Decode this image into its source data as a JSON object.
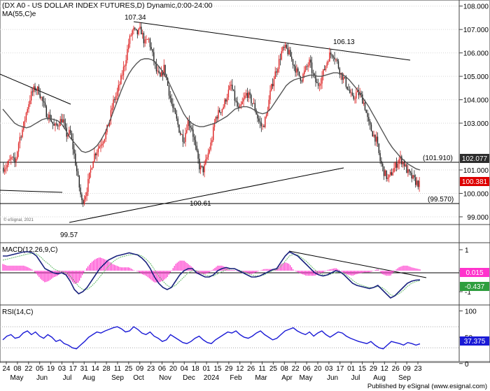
{
  "header": {
    "title": "(DX A0 - US DOLLAR INDEX FUTURES,D) Dynamic,0:00-24:00",
    "ma_label": "MA(55,C)e",
    "copyright": "© eSignal, 2021"
  },
  "footer": {
    "published": "Published by eSignal (www.esignal.com)"
  },
  "colors": {
    "bull": "#dd2222",
    "bear": "#222222",
    "ma": "#555555",
    "macd_line": "#1a237e",
    "signal_line": "#66bb6a",
    "histogram": "#ff33cc",
    "rsi_line": "#1a1ad6",
    "last_price_bg": "#dd0000",
    "level_bg": "#2d2d2d",
    "macd_value_bg": "#ff33cc",
    "signal_value_bg": "#2e9e3e",
    "rsi_value_bg": "#1a1ad6"
  },
  "chart_data": [
    {
      "type": "candlestick",
      "panel": "price",
      "series_names": [
        "DX A0",
        "MA(55,C)e"
      ],
      "ylim": [
        98.7,
        108.2
      ],
      "y_ticks": [
        "108.000",
        "107.000",
        "106.000",
        "105.000",
        "104.000",
        "103.000",
        "101.000",
        "100.000",
        "99.000"
      ],
      "last_price_label": "100.381",
      "level_label": "102.077",
      "annotations": [
        "107.34",
        "106.13",
        "100.61",
        "99.57",
        "(101.910)",
        "(99.570)"
      ],
      "close_path": [
        101.1,
        101.2,
        101.5,
        101.3,
        102.3,
        102.8,
        103.6,
        104.2,
        104.5,
        104.4,
        103.9,
        103.4,
        103.2,
        102.8,
        103.0,
        103.2,
        102.5,
        102.6,
        101.7,
        100.6,
        99.6,
        100.0,
        100.8,
        101.6,
        101.9,
        102.2,
        102.5,
        103.1,
        103.9,
        104.3,
        104.9,
        105.6,
        106.5,
        107.0,
        106.8,
        107.0,
        106.4,
        106.6,
        105.9,
        105.2,
        104.9,
        105.4,
        104.5,
        103.7,
        103.2,
        102.6,
        102.3,
        103.1,
        102.8,
        101.9,
        101.1,
        101.0,
        101.6,
        102.2,
        103.2,
        103.5,
        103.7,
        104.2,
        104.6,
        104.0,
        103.5,
        103.9,
        104.3,
        104.0,
        103.7,
        103.1,
        102.8,
        103.3,
        104.3,
        105.0,
        105.5,
        106.1,
        106.2,
        105.9,
        105.5,
        105.1,
        104.9,
        105.3,
        105.6,
        105.0,
        104.6,
        104.9,
        105.4,
        105.9,
        106.0,
        105.6,
        105.1,
        104.8,
        104.4,
        104.0,
        104.3,
        104.2,
        103.8,
        103.0,
        102.6,
        102.3,
        101.4,
        100.9,
        100.6,
        100.9,
        101.2,
        101.5,
        101.3,
        100.9,
        100.7,
        100.5,
        100.38
      ],
      "ma_path": [
        103.6,
        103.4,
        103.2,
        103.0,
        102.9,
        102.85,
        102.8,
        102.85,
        102.95,
        103.05,
        103.15,
        103.2,
        103.2,
        103.15,
        103.1,
        102.95,
        102.7,
        102.4,
        102.2,
        102.0,
        101.8,
        101.75,
        101.8,
        101.9,
        102.05,
        102.3,
        102.6,
        103.0,
        103.45,
        103.9,
        104.35,
        104.75,
        105.1,
        105.35,
        105.55,
        105.7,
        105.75,
        105.75,
        105.7,
        105.55,
        105.35,
        105.1,
        104.8,
        104.45,
        104.1,
        103.75,
        103.4,
        103.15,
        103.0,
        102.9,
        102.85,
        102.85,
        102.9,
        102.95,
        103.0,
        103.1,
        103.2,
        103.3,
        103.45,
        103.6,
        103.65,
        103.7,
        103.7,
        103.65,
        103.55,
        103.45,
        103.4,
        103.45,
        103.6,
        103.85,
        104.1,
        104.35,
        104.6,
        104.75,
        104.85,
        104.9,
        104.95,
        105.0,
        105.05,
        105.05,
        105.0,
        105.0,
        105.05,
        105.1,
        105.15,
        105.15,
        105.1,
        105.0,
        104.85,
        104.65,
        104.45,
        104.2,
        103.95,
        103.7,
        103.4,
        103.1,
        102.8,
        102.5,
        102.2,
        101.95,
        101.75,
        101.55,
        101.4,
        101.25,
        101.15,
        101.05,
        101.0
      ]
    },
    {
      "type": "line",
      "panel": "macd",
      "indicator_label": "MACD(12,26,9,C)",
      "ylim": [
        -1.6,
        1.3
      ],
      "value_labels": [
        "0.015",
        "-0.437"
      ],
      "macd_path": [
        0.7,
        0.7,
        0.75,
        0.8,
        0.85,
        0.9,
        0.9,
        0.85,
        0.7,
        0.4,
        0.1,
        0.0,
        -0.1,
        -0.15,
        -0.1,
        -0.2,
        -0.5,
        -0.9,
        -1.1,
        -1.0,
        -0.8,
        -0.5,
        -0.2,
        0.1,
        0.3,
        0.5,
        0.6,
        0.7,
        0.75,
        0.8,
        0.85,
        0.8,
        0.75,
        0.6,
        0.4,
        0.1,
        -0.3,
        -0.6,
        -0.8,
        -0.9,
        -0.8,
        -0.5,
        -0.2,
        0.0,
        0.1,
        0.1,
        -0.1,
        -0.2,
        -0.3,
        -0.3,
        -0.2,
        0.0,
        0.1,
        0.15,
        0.1,
        0.1,
        0.0,
        -0.1,
        -0.2,
        -0.3,
        -0.3,
        -0.25,
        -0.15,
        -0.05,
        0.05,
        0.1,
        0.4,
        0.7,
        0.9,
        0.8,
        0.7,
        0.5,
        0.3,
        0.1,
        -0.1,
        -0.2,
        -0.25,
        -0.2,
        -0.1,
        0.0,
        -0.05,
        -0.2,
        -0.4,
        -0.6,
        -0.7,
        -0.75,
        -0.8,
        -0.85,
        -0.8,
        -0.7,
        -0.9,
        -1.1,
        -1.3,
        -1.2,
        -1.0,
        -0.8,
        -0.6,
        -0.5,
        -0.45,
        -0.44
      ],
      "signal_path": [
        0.5,
        0.55,
        0.6,
        0.65,
        0.7,
        0.75,
        0.8,
        0.82,
        0.8,
        0.65,
        0.45,
        0.3,
        0.1,
        0.0,
        -0.05,
        -0.1,
        -0.25,
        -0.5,
        -0.75,
        -0.9,
        -0.9,
        -0.75,
        -0.55,
        -0.3,
        -0.05,
        0.2,
        0.4,
        0.55,
        0.65,
        0.7,
        0.75,
        0.78,
        0.77,
        0.7,
        0.55,
        0.35,
        0.05,
        -0.25,
        -0.5,
        -0.7,
        -0.8,
        -0.7,
        -0.5,
        -0.3,
        -0.1,
        0.0,
        0.0,
        -0.1,
        -0.2,
        -0.25,
        -0.25,
        -0.15,
        -0.05,
        0.05,
        0.08,
        0.08,
        0.03,
        -0.05,
        -0.12,
        -0.2,
        -0.25,
        -0.25,
        -0.2,
        -0.1,
        0.0,
        0.05,
        0.2,
        0.45,
        0.7,
        0.78,
        0.75,
        0.6,
        0.45,
        0.25,
        0.05,
        -0.1,
        -0.2,
        -0.22,
        -0.15,
        -0.08,
        -0.06,
        -0.12,
        -0.28,
        -0.45,
        -0.6,
        -0.68,
        -0.75,
        -0.8,
        -0.8,
        -0.75,
        -0.8,
        -0.95,
        -1.15,
        -1.2,
        -1.1,
        -0.95,
        -0.75,
        -0.6,
        -0.52,
        -0.48
      ]
    },
    {
      "type": "line",
      "panel": "rsi",
      "indicator_label": "RSI(14,C)",
      "ylim": [
        5,
        110
      ],
      "y_ticks": [
        "100",
        "50",
        "0"
      ],
      "value_labels": [
        "37.375"
      ],
      "rsi_path": [
        45,
        52,
        55,
        48,
        50,
        58,
        62,
        55,
        60,
        52,
        48,
        55,
        50,
        42,
        45,
        38,
        35,
        30,
        28,
        35,
        42,
        50,
        55,
        60,
        58,
        62,
        65,
        68,
        70,
        66,
        60,
        62,
        70,
        65,
        58,
        55,
        60,
        52,
        48,
        42,
        45,
        55,
        50,
        45,
        40,
        38,
        42,
        48,
        52,
        45,
        40,
        38,
        45,
        50,
        55,
        60,
        58,
        62,
        55,
        50,
        48,
        52,
        58,
        62,
        55,
        50,
        45,
        48,
        55,
        62,
        65,
        68,
        62,
        58,
        55,
        60,
        52,
        58,
        62,
        55,
        50,
        55,
        60,
        58,
        52,
        48,
        45,
        42,
        40,
        38,
        42,
        35,
        30,
        28,
        35,
        42,
        40,
        38,
        35,
        40,
        38,
        35,
        37.4
      ],
      "levels": [
        70,
        30
      ]
    }
  ],
  "y_axis": {
    "macd_ticks": [
      "1",
      "0",
      "-1"
    ]
  },
  "x_axis": {
    "day_labels": [
      "24",
      "08",
      "22",
      "05",
      "19",
      "03",
      "17",
      "31",
      "14",
      "28",
      "11",
      "25",
      "09",
      "23",
      "06",
      "20",
      "04",
      "18",
      "01",
      "15",
      "29",
      "12",
      "26",
      "11",
      "25",
      "08",
      "22",
      "06",
      "20",
      "03",
      "17",
      "01",
      "15",
      "29",
      "12",
      "26",
      "09",
      "23"
    ],
    "month_labels": [
      "May",
      "Jun",
      "Jul",
      "Aug",
      "Sep",
      "Oct",
      "Nov",
      "Dec",
      "2024",
      "Feb",
      "Mar",
      "Apr",
      "May",
      "Jun",
      "Jul",
      "Aug",
      "Sep"
    ]
  }
}
